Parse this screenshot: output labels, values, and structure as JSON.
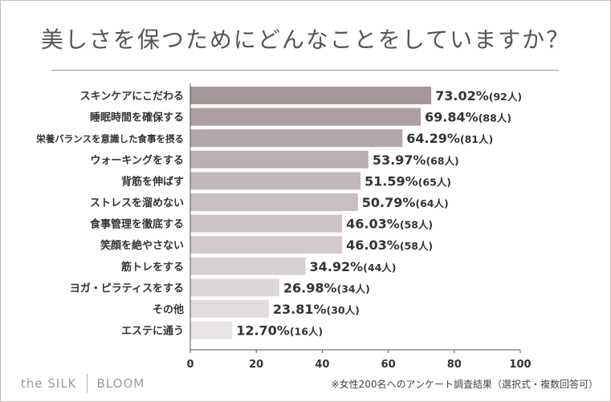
{
  "chart_data": {
    "type": "bar",
    "orientation": "horizontal",
    "title": "美しさを保つためにどんなことをしていますか？",
    "categories": [
      "スキンケアにこだわる",
      "睡眠時間を確保する",
      "栄養バランスを意識した食事を摂る",
      "ウォーキングをする",
      "背筋を伸ばす",
      "ストレスを溜めない",
      "食事管理を徹底する",
      "笑顔を絶やさない",
      "筋トレをする",
      "ヨガ・ピラティスをする",
      "その他",
      "エステに通う"
    ],
    "values": [
      73.02,
      69.84,
      64.29,
      53.97,
      51.59,
      50.79,
      46.03,
      46.03,
      34.92,
      26.98,
      23.81,
      12.7
    ],
    "value_labels": [
      "73.02%",
      "69.84%",
      "64.29%",
      "53.97%",
      "51.59%",
      "50.79%",
      "46.03%",
      "46.03%",
      "34.92%",
      "26.98%",
      "23.81%",
      "12.70%"
    ],
    "count_labels": [
      "(92人)",
      "(88人)",
      "(81人)",
      "(68人)",
      "(65人)",
      "(64人)",
      "(58人)",
      "(58人)",
      "(44人)",
      "(34人)",
      "(30人)",
      "(16人)"
    ],
    "xlim": [
      0,
      100
    ],
    "xticks": [
      0,
      20,
      40,
      60,
      80,
      100
    ],
    "xlabel": "",
    "ylabel": "",
    "bar_colors": [
      "#a59698",
      "#ac9ea1",
      "#b3a6a8",
      "#bbafb1",
      "#c2b7b9",
      "#c8bec0",
      "#cdc4c6",
      "#d2cacc",
      "#d7d0d1",
      "#dcd6d7",
      "#e2dddd",
      "#e8e4e5"
    ],
    "grid": false
  },
  "footer": {
    "brand_left": "the SILK",
    "brand_right": "BLOOM",
    "note": "※女性200名へのアンケート調査結果（選択式・複数回答可）"
  },
  "colors": {
    "text": "#333333",
    "axis": "#555555",
    "border": "#c9bfbd"
  }
}
